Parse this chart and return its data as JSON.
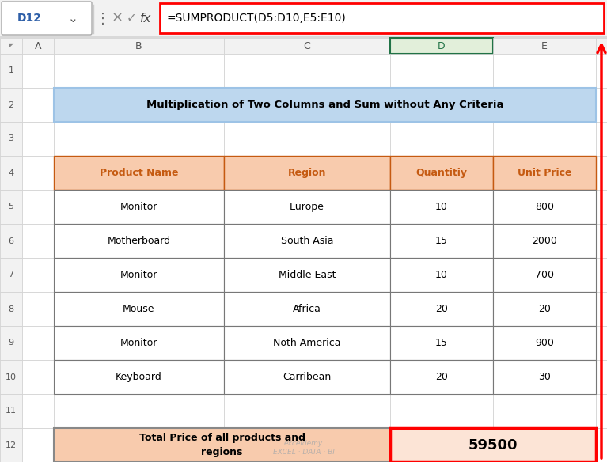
{
  "formula_bar_cell": "D12",
  "formula_bar_formula": "=SUMPRODUCT(D5:D10,E5:E10)",
  "title_text": "Multiplication of Two Columns and Sum without Any Criteria",
  "title_bg": "#BDD7EE",
  "title_text_color": "#000000",
  "header_bg": "#F8CBAD",
  "header_text_color": "#C55A11",
  "headers": [
    "Product Name",
    "Region",
    "Quantitiy",
    "Unit Price"
  ],
  "rows": [
    [
      "Monitor",
      "Europe",
      "10",
      "800"
    ],
    [
      "Motherboard",
      "South Asia",
      "15",
      "2000"
    ],
    [
      "Monitor",
      "Middle East",
      "10",
      "700"
    ],
    [
      "Mouse",
      "Africa",
      "20",
      "20"
    ],
    [
      "Monitor",
      "Noth America",
      "15",
      "900"
    ],
    [
      "Keyboard",
      "Carribean",
      "20",
      "30"
    ]
  ],
  "summary_label": "Total Price of all products and\nregions",
  "summary_value": "59500",
  "summary_label_bg": "#F8CBAD",
  "summary_value_bg": "#FCE4D6",
  "summary_border_color": "#FF0000",
  "col_labels": [
    "A",
    "B",
    "C",
    "D",
    "E"
  ],
  "grid_color": "#D0D0D0",
  "formula_bar_bg": "#FFFFFF",
  "formula_bar_border": "#FF0000",
  "col_header_bg": "#F2F2F2",
  "col_header_selected_bg": "#E2EFDA",
  "col_header_selected_border": "#217346",
  "row_label_bg": "#F2F2F2",
  "cell_bg": "#FFFFFF",
  "red_arrow_color": "#FF0000",
  "watermark": "exceldemy\nEXCEL · DATA · BI",
  "fig_w": 7.67,
  "fig_h": 5.84,
  "dpi": 100
}
